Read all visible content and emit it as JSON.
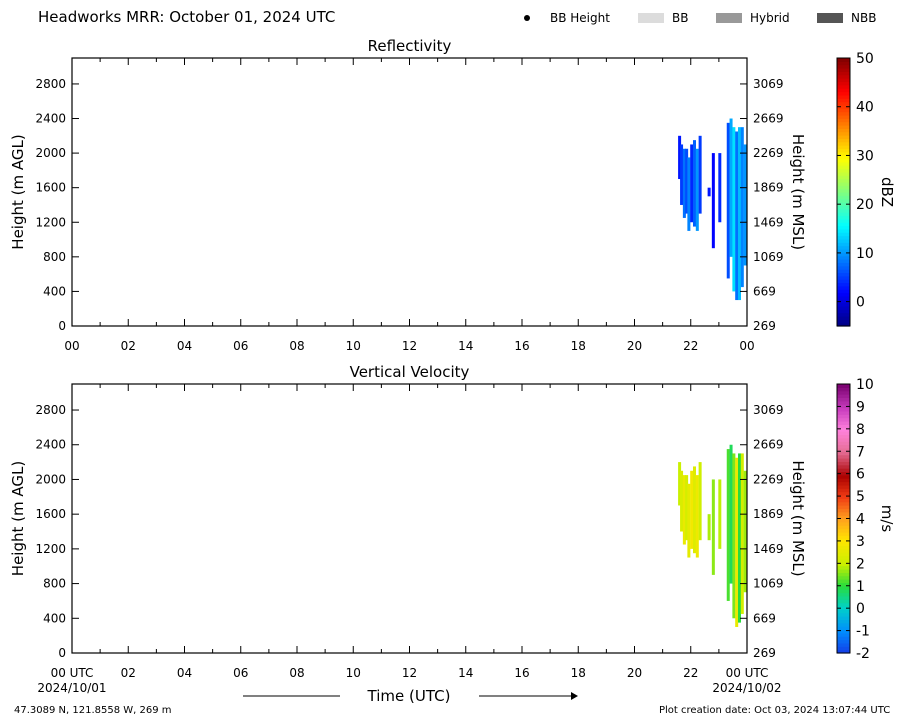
{
  "header": {
    "title": "Headworks MRR:  October 01, 2024 UTC"
  },
  "legend": {
    "items": [
      {
        "label": "BB Height",
        "kind": "dot",
        "color": "#000000"
      },
      {
        "label": "BB",
        "kind": "swatch",
        "color": "#dcdcdc"
      },
      {
        "label": "Hybrid",
        "kind": "swatch",
        "color": "#999999"
      },
      {
        "label": "NBB",
        "kind": "swatch",
        "color": "#555555"
      }
    ]
  },
  "footer": {
    "location": "47.3089 N, 121.8558 W, 269 m",
    "created": "Plot creation date: Oct 03, 2024 13:07:44 UTC",
    "xlabel": "Time (UTC)",
    "start_date": "2024/10/01",
    "end_date": "2024/10/02"
  },
  "chart_data": [
    {
      "type": "heatmap",
      "title": "Reflectivity",
      "ylabel": "Height (m AGL)",
      "ylabel_right": "Height (m MSL)",
      "xlim": [
        0,
        24
      ],
      "ylim": [
        0,
        3100
      ],
      "x_ticks": [
        "00",
        "02",
        "04",
        "06",
        "08",
        "10",
        "12",
        "14",
        "16",
        "18",
        "20",
        "22",
        "00"
      ],
      "y_ticks": [
        0,
        400,
        800,
        1200,
        1600,
        2000,
        2400,
        2800
      ],
      "y_ticks_right": [
        269,
        669,
        1069,
        1469,
        1869,
        2269,
        2669,
        3069
      ],
      "colorbar": {
        "label": "dBZ",
        "min": -5,
        "max": 50,
        "ticks": [
          0,
          10,
          20,
          30,
          40,
          50
        ],
        "colormap": "jet"
      },
      "columns": [
        {
          "x": 21.55,
          "bottom": 1700,
          "top": 2200,
          "v": 3
        },
        {
          "x": 21.62,
          "bottom": 1400,
          "top": 2100,
          "v": 5
        },
        {
          "x": 21.72,
          "bottom": 1250,
          "top": 2050,
          "v": 8
        },
        {
          "x": 21.8,
          "bottom": 1300,
          "top": 2050,
          "v": 6
        },
        {
          "x": 21.88,
          "bottom": 1100,
          "top": 1950,
          "v": 9
        },
        {
          "x": 21.98,
          "bottom": 1200,
          "top": 2100,
          "v": 4
        },
        {
          "x": 22.08,
          "bottom": 1150,
          "top": 2150,
          "v": 7
        },
        {
          "x": 22.18,
          "bottom": 1100,
          "top": 2050,
          "v": 10
        },
        {
          "x": 22.28,
          "bottom": 1300,
          "top": 2200,
          "v": 5
        },
        {
          "x": 22.6,
          "bottom": 1500,
          "top": 1600,
          "v": 3
        },
        {
          "x": 22.75,
          "bottom": 900,
          "top": 2000,
          "v": 2
        },
        {
          "x": 22.98,
          "bottom": 1200,
          "top": 2000,
          "v": 4
        },
        {
          "x": 23.28,
          "bottom": 550,
          "top": 2350,
          "v": 6
        },
        {
          "x": 23.38,
          "bottom": 800,
          "top": 2400,
          "v": 11
        },
        {
          "x": 23.48,
          "bottom": 400,
          "top": 2300,
          "v": 14
        },
        {
          "x": 23.58,
          "bottom": 300,
          "top": 2250,
          "v": 8
        },
        {
          "x": 23.68,
          "bottom": 300,
          "top": 2300,
          "v": 12
        },
        {
          "x": 23.78,
          "bottom": 450,
          "top": 2300,
          "v": 9
        },
        {
          "x": 23.88,
          "bottom": 700,
          "top": 2100,
          "v": 10
        }
      ]
    },
    {
      "type": "heatmap",
      "title": "Vertical Velocity",
      "ylabel": "Height (m AGL)",
      "ylabel_right": "Height (m MSL)",
      "xlim": [
        0,
        24
      ],
      "ylim": [
        0,
        3100
      ],
      "x_ticks": [
        "00 UTC",
        "02",
        "04",
        "06",
        "08",
        "10",
        "12",
        "14",
        "16",
        "18",
        "20",
        "22",
        "00 UTC"
      ],
      "y_ticks": [
        0,
        400,
        800,
        1200,
        1600,
        2000,
        2400,
        2800
      ],
      "y_ticks_right": [
        269,
        669,
        1069,
        1469,
        1869,
        2269,
        2669,
        3069
      ],
      "colorbar": {
        "label": "m/s",
        "min": -2,
        "max": 10,
        "ticks": [
          -2,
          -1,
          0,
          1,
          2,
          3,
          4,
          5,
          6,
          7,
          8,
          9,
          10
        ],
        "colormap": "velocity"
      },
      "columns": [
        {
          "x": 21.55,
          "bottom": 1700,
          "top": 2200,
          "v": 2.0
        },
        {
          "x": 21.62,
          "bottom": 1400,
          "top": 2100,
          "v": 2.3
        },
        {
          "x": 21.72,
          "bottom": 1250,
          "top": 2050,
          "v": 2.6
        },
        {
          "x": 21.8,
          "bottom": 1300,
          "top": 2050,
          "v": 2.2
        },
        {
          "x": 21.88,
          "bottom": 1100,
          "top": 1950,
          "v": 2.5
        },
        {
          "x": 21.98,
          "bottom": 1200,
          "top": 2100,
          "v": 2.8
        },
        {
          "x": 22.08,
          "bottom": 1150,
          "top": 2150,
          "v": 2.4
        },
        {
          "x": 22.18,
          "bottom": 1100,
          "top": 2050,
          "v": 2.7
        },
        {
          "x": 22.28,
          "bottom": 1300,
          "top": 2200,
          "v": 2.1
        },
        {
          "x": 22.6,
          "bottom": 1300,
          "top": 1600,
          "v": 1.8
        },
        {
          "x": 22.75,
          "bottom": 900,
          "top": 2000,
          "v": 1.6
        },
        {
          "x": 22.98,
          "bottom": 1200,
          "top": 2000,
          "v": 1.9
        },
        {
          "x": 23.28,
          "bottom": 600,
          "top": 2350,
          "v": 1.2
        },
        {
          "x": 23.38,
          "bottom": 800,
          "top": 2400,
          "v": 0.8
        },
        {
          "x": 23.48,
          "bottom": 400,
          "top": 2300,
          "v": 1.5
        },
        {
          "x": 23.58,
          "bottom": 300,
          "top": 2250,
          "v": 2.6
        },
        {
          "x": 23.68,
          "bottom": 350,
          "top": 2300,
          "v": 1.0
        },
        {
          "x": 23.78,
          "bottom": 450,
          "top": 2300,
          "v": 2.2
        },
        {
          "x": 23.88,
          "bottom": 700,
          "top": 2100,
          "v": 1.7
        }
      ]
    }
  ]
}
